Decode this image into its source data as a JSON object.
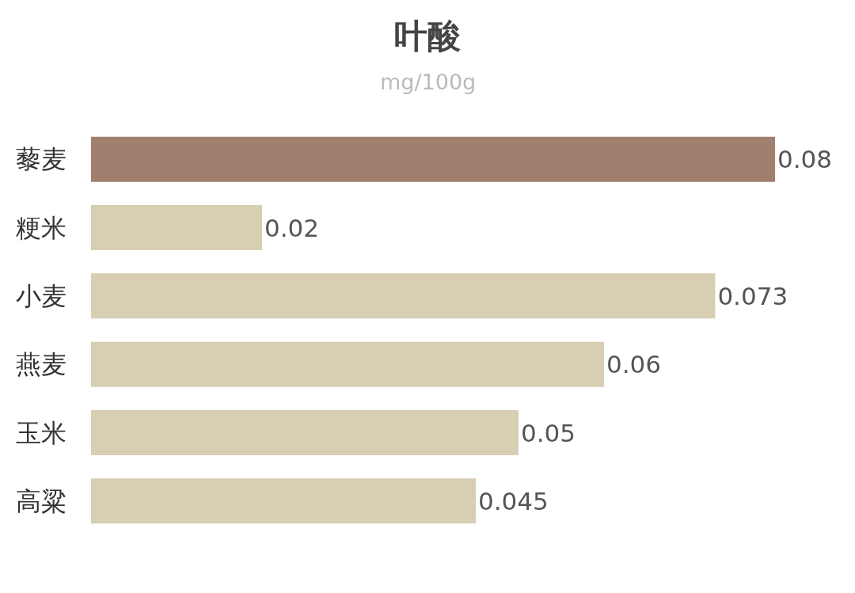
{
  "chart_data": {
    "type": "bar",
    "orientation": "horizontal",
    "title": "叶酸",
    "subtitle": "mg/100g",
    "categories": [
      "藜麦",
      "粳米",
      "小麦",
      "燕麦",
      "玉米",
      "高粱"
    ],
    "values": [
      0.08,
      0.02,
      0.073,
      0.06,
      0.05,
      0.045
    ],
    "colors": [
      "#a17f6f",
      "#d7ceb3",
      "#d7ceb3",
      "#d7ceb3",
      "#d7ceb3",
      "#d7ceb3"
    ],
    "data_labels": true,
    "xlim": [
      0,
      0.08
    ],
    "tick_labels": "y"
  }
}
